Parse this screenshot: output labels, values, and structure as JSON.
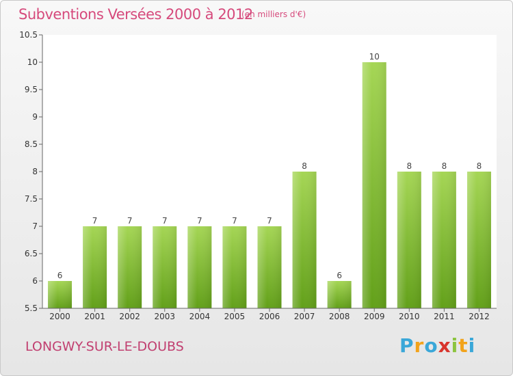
{
  "title": "Subventions Versées 2000 à 2012",
  "unit": "(en milliers d'€)",
  "commune": "LONGWY-SUR-LE-DOUBS",
  "brand": {
    "letters": [
      "P",
      "r",
      "o",
      "x",
      "i",
      "t",
      "i"
    ],
    "colors": [
      "#3aa7d8",
      "#f2a31b",
      "#3aa7d8",
      "#d8342c",
      "#8cc43f",
      "#f2a31b",
      "#3aa7d8"
    ]
  },
  "colors": {
    "bar_top": "#a5d655",
    "bar_bottom": "#62a019",
    "title": "#d64a7c"
  },
  "chart_data": {
    "type": "bar",
    "title": "Subventions Versées 2000 à 2012",
    "subtitle": "(en milliers d'€)",
    "categories": [
      "2000",
      "2001",
      "2002",
      "2003",
      "2004",
      "2005",
      "2006",
      "2007",
      "2008",
      "2009",
      "2010",
      "2011",
      "2012"
    ],
    "values": [
      6,
      7,
      7,
      7,
      7,
      7,
      7,
      8,
      6,
      10,
      8,
      8,
      8
    ],
    "data_labels": [
      "6",
      "7",
      "7",
      "7",
      "7",
      "7",
      "7",
      "8",
      "6",
      "10",
      "8",
      "8",
      "8"
    ],
    "ylim": [
      5.5,
      10.5
    ],
    "yticks": [
      5.5,
      6,
      6.5,
      7,
      7.5,
      8,
      8.5,
      9,
      9.5,
      10,
      10.5
    ],
    "ytick_labels": [
      "5.5",
      "6",
      "6.5",
      "7",
      "7.5",
      "8",
      "8.5",
      "9",
      "9.5",
      "10",
      "10.5"
    ],
    "xlabel": "",
    "ylabel": "",
    "grid": false
  }
}
